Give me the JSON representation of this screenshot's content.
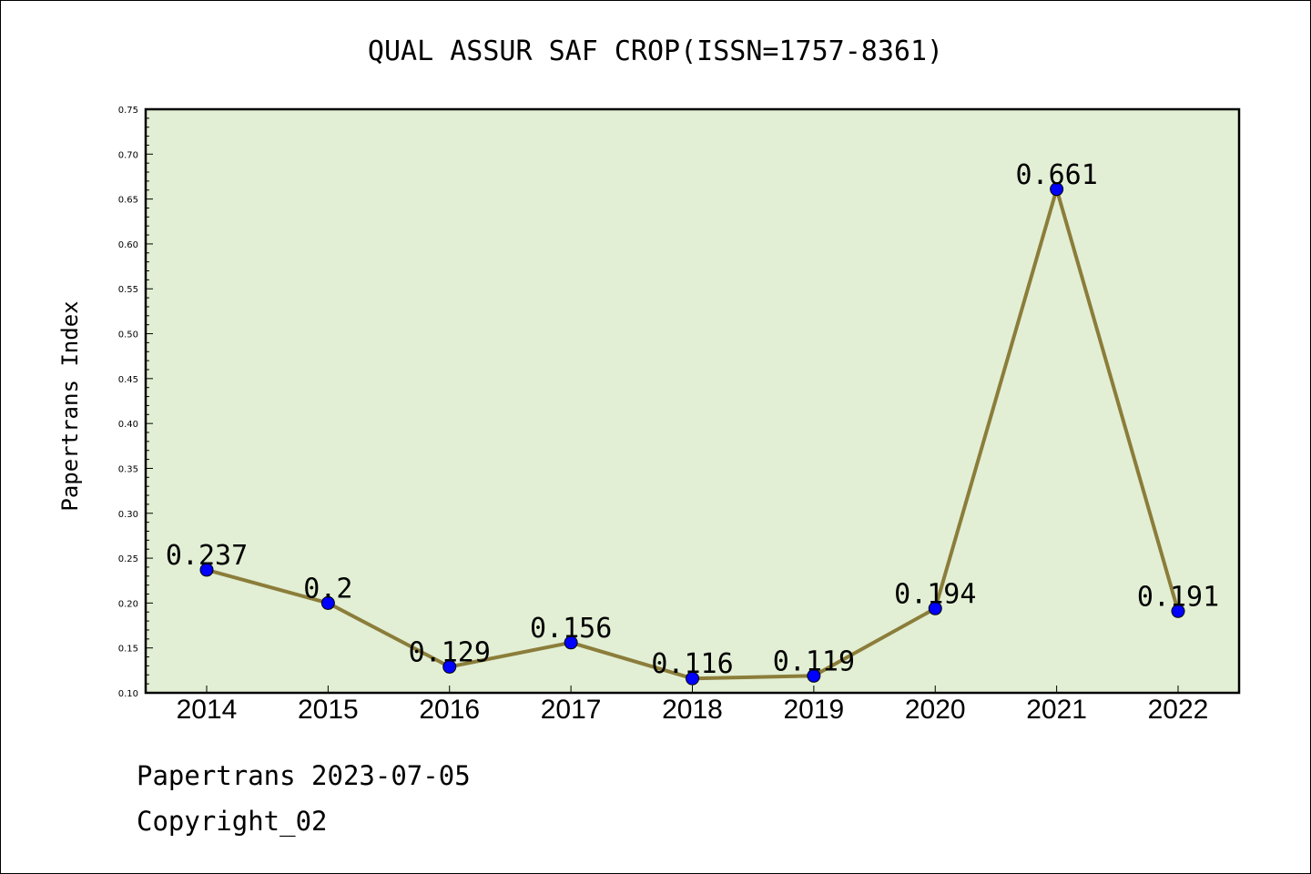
{
  "chart_data": {
    "type": "line",
    "title": "QUAL ASSUR SAF CROP(ISSN=1757-8361)",
    "xlabel": "",
    "ylabel": "Papertrans Index",
    "categories": [
      "2014",
      "2015",
      "2016",
      "2017",
      "2018",
      "2019",
      "2020",
      "2021",
      "2022"
    ],
    "series": [
      {
        "values": [
          0.237,
          0.2,
          0.129,
          0.156,
          0.116,
          0.119,
          0.194,
          0.661,
          0.191
        ],
        "labels": [
          "0.237",
          "0.2",
          "0.129",
          "0.156",
          "0.116",
          "0.119",
          "0.194",
          "0.661",
          "0.191"
        ]
      }
    ],
    "ylim": [
      0.1,
      0.75
    ],
    "yticks": [
      "0.10",
      "0.15",
      "0.20",
      "0.25",
      "0.30",
      "0.35",
      "0.40",
      "0.45",
      "0.50",
      "0.55",
      "0.60",
      "0.65",
      "0.70",
      "0.75"
    ],
    "grid": false,
    "colors": {
      "plot_background": "#e2efd4",
      "line": "#8b7d3a",
      "marker": "#0000ff"
    }
  },
  "footer": {
    "line1": "Papertrans 2023-07-05",
    "line2": "Copyright_02"
  }
}
